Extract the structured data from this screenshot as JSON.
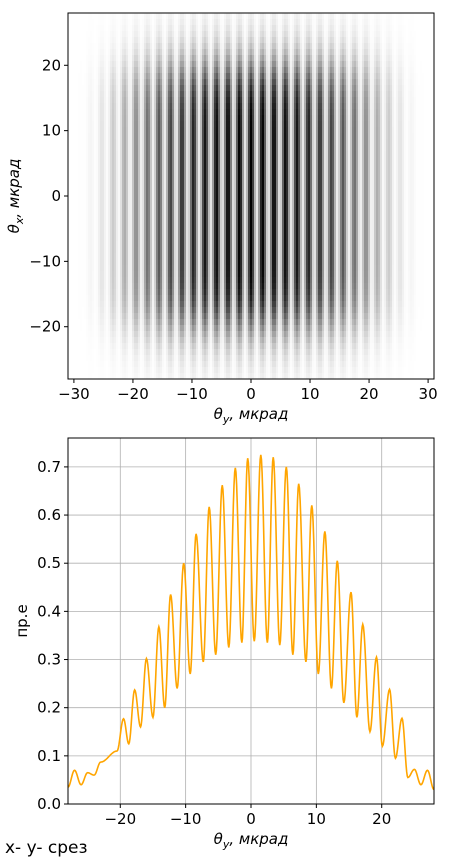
{
  "footer": {
    "caption": "x- y- срез"
  },
  "chart_data": [
    {
      "type": "heatmap",
      "colormap": "gray_r",
      "xlabel": "θ_y, мкрад",
      "ylabel": "θ_x, мкрад",
      "xlim": [
        -31,
        31
      ],
      "ylim": [
        -28,
        28
      ],
      "xticks": [
        -30,
        -20,
        -10,
        0,
        10,
        20,
        30
      ],
      "yticks": [
        20,
        10,
        0,
        -10,
        -20
      ],
      "x_tick_labels": [
        "−30",
        "−20",
        "−10",
        "0",
        "10",
        "20",
        "30"
      ],
      "y_tick_labels": [
        "20",
        "10",
        "0",
        "−10",
        "−20"
      ],
      "fringe_period": 1.95,
      "envelope_x_halfwidth": 28,
      "envelope_y_halfwidth": 20,
      "peak_intensity": 1.0,
      "grid": false
    },
    {
      "type": "line",
      "xlabel": "θ_y, мкрад",
      "ylabel": "пр.е",
      "xlim": [
        -28,
        28
      ],
      "ylim": [
        0,
        0.76
      ],
      "xticks": [
        -20,
        -10,
        0,
        10,
        20
      ],
      "yticks": [
        0.0,
        0.1,
        0.2,
        0.3,
        0.4,
        0.5,
        0.6,
        0.7
      ],
      "x_tick_labels": [
        "−20",
        "−10",
        "0",
        "10",
        "20"
      ],
      "y_tick_labels": [
        "0.0",
        "0.1",
        "0.2",
        "0.3",
        "0.4",
        "0.5",
        "0.6",
        "0.7"
      ],
      "grid": true,
      "series": [
        {
          "color": "#ffa500",
          "peaks_x": [
            -27,
            -25,
            -23,
            -19.5,
            -17.8,
            -16,
            -14.1,
            -12.3,
            -10.3,
            -8.4,
            -6.4,
            -4.4,
            -2.4,
            -0.5,
            1.5,
            3.4,
            5.4,
            7.3,
            9.3,
            11.3,
            13.2,
            15.3,
            17.1,
            19.2,
            21.2,
            23.1,
            25,
            27
          ],
          "peaks_y": [
            0.07,
            0.065,
            0.087,
            0.177,
            0.237,
            0.302,
            0.368,
            0.435,
            0.5,
            0.561,
            0.617,
            0.662,
            0.698,
            0.718,
            0.725,
            0.72,
            0.7,
            0.665,
            0.62,
            0.566,
            0.505,
            0.44,
            0.373,
            0.305,
            0.238,
            0.178,
            0.072,
            0.07
          ],
          "valleys_x": [
            -28,
            -26,
            -24,
            -20.5,
            -18.7,
            -16.9,
            -15,
            -13.2,
            -11.3,
            -9.3,
            -7.3,
            -5.4,
            -3.4,
            -1.4,
            0.5,
            2.5,
            4.4,
            6.4,
            8.4,
            10.3,
            12.3,
            14.2,
            16.2,
            18.2,
            20.1,
            22.1,
            24,
            26,
            28
          ],
          "valleys_y": [
            0.035,
            0.04,
            0.06,
            0.11,
            0.125,
            0.16,
            0.18,
            0.2,
            0.24,
            0.27,
            0.295,
            0.31,
            0.325,
            0.335,
            0.338,
            0.335,
            0.33,
            0.31,
            0.295,
            0.27,
            0.24,
            0.21,
            0.18,
            0.15,
            0.12,
            0.095,
            0.055,
            0.04,
            0.03
          ]
        }
      ]
    }
  ]
}
